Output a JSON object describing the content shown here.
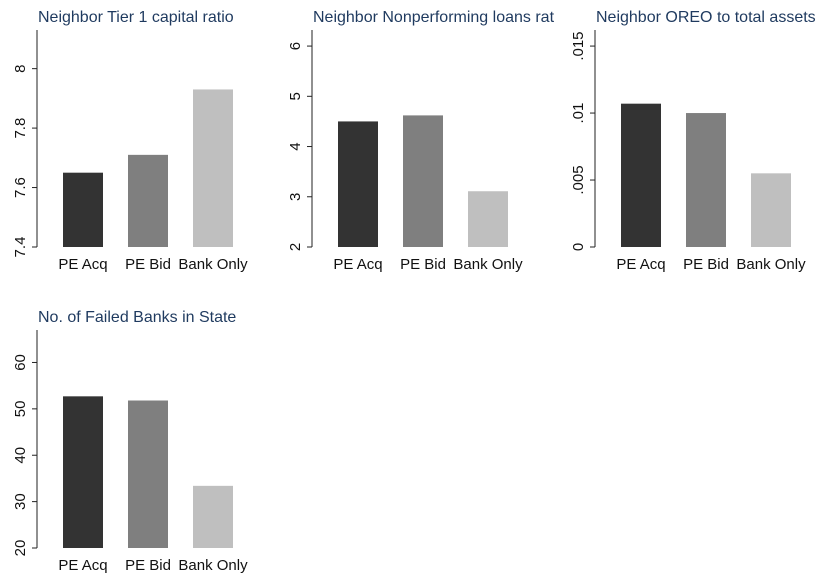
{
  "chart_data": [
    {
      "type": "bar",
      "title": "Neighbor Tier 1 capital ratio",
      "categories": [
        "PE Acq",
        "PE Bid",
        "Bank Only"
      ],
      "values": [
        7.65,
        7.71,
        7.93
      ],
      "colors": [
        "#333333",
        "#7f7f7f",
        "#bfbfbf"
      ],
      "ylim": [
        7.4,
        8.13
      ],
      "yticks": [
        7.4,
        7.6,
        7.8,
        8
      ]
    },
    {
      "type": "bar",
      "title": "Neighbor Nonperforming loans rat",
      "categories": [
        "PE Acq",
        "PE Bid",
        "Bank Only"
      ],
      "values": [
        4.5,
        4.62,
        3.11
      ],
      "colors": [
        "#333333",
        "#7f7f7f",
        "#bfbfbf"
      ],
      "ylim": [
        2,
        6.32
      ],
      "yticks": [
        2,
        3,
        4,
        5,
        6
      ]
    },
    {
      "type": "bar",
      "title": "Neighbor OREO to total assets",
      "categories": [
        "PE Acq",
        "PE Bid",
        "Bank Only"
      ],
      "values": [
        0.0107,
        0.01,
        0.0055
      ],
      "colors": [
        "#333333",
        "#7f7f7f",
        "#bfbfbf"
      ],
      "ylim": [
        0,
        0.0162
      ],
      "yticks": [
        0,
        {
          "value": 0.005,
          "label": ".005"
        },
        {
          "value": 0.01,
          "label": ".01"
        },
        {
          "value": 0.015,
          "label": ".015"
        }
      ]
    },
    {
      "type": "bar",
      "title": "No. of Failed Banks in State",
      "categories": [
        "PE Acq",
        "PE Bid",
        "Bank Only"
      ],
      "values": [
        52.7,
        51.8,
        33.4
      ],
      "colors": [
        "#333333",
        "#7f7f7f",
        "#bfbfbf"
      ],
      "ylim": [
        20,
        67
      ],
      "yticks": [
        20,
        30,
        40,
        50,
        60
      ]
    }
  ]
}
